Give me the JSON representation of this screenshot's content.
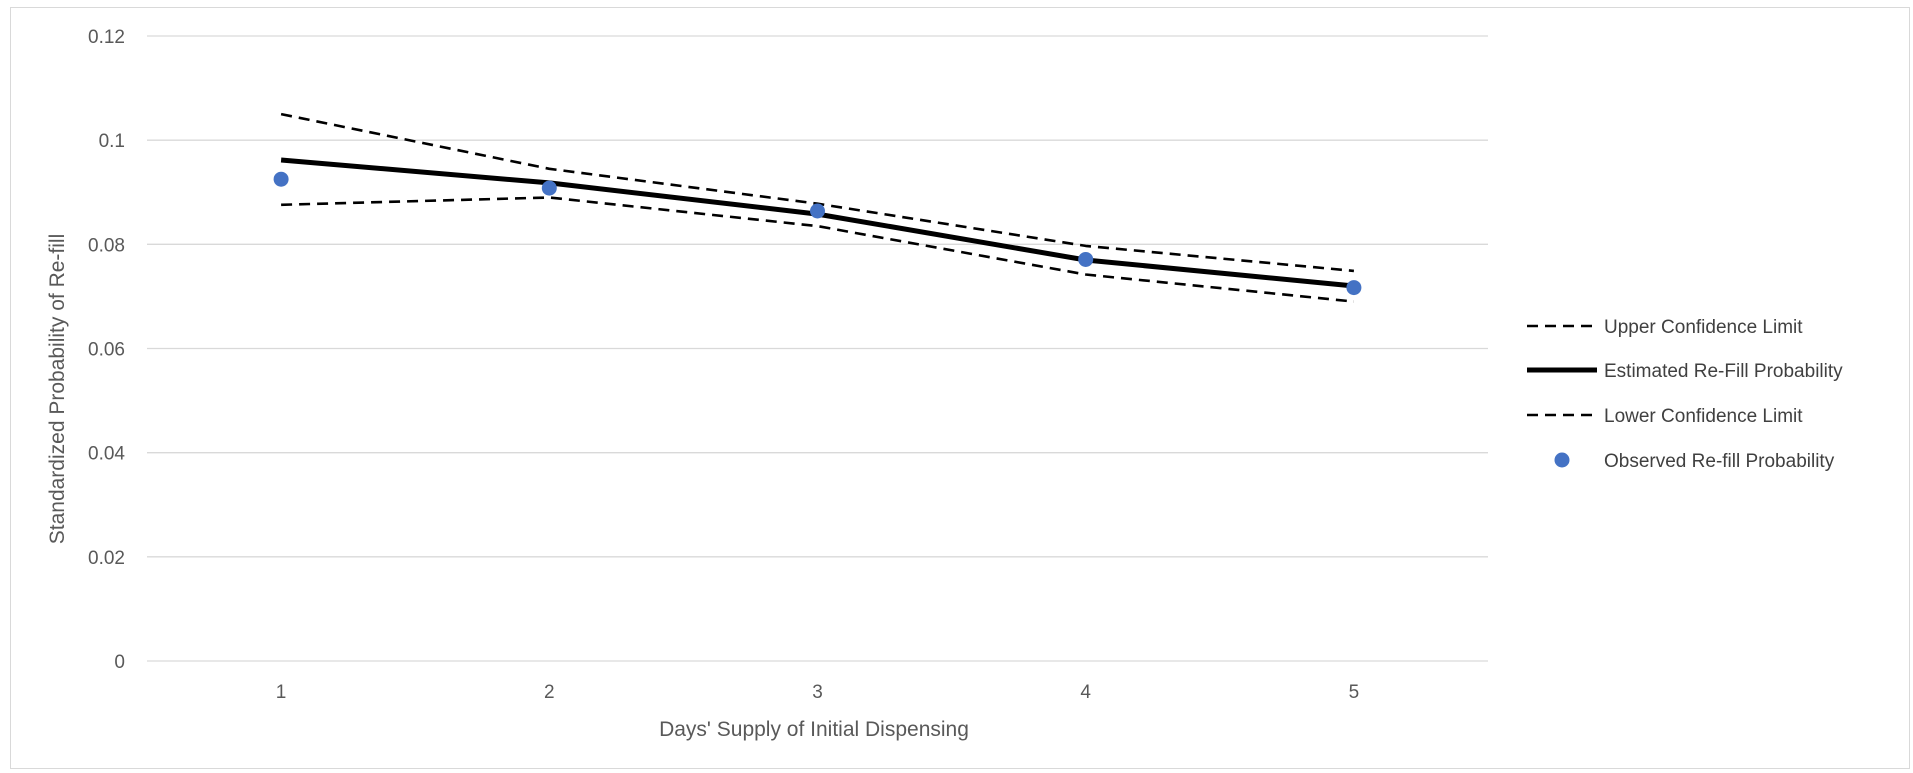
{
  "chart_data": {
    "type": "line",
    "title": "",
    "xlabel": "Days' Supply of Initial Dispensing",
    "ylabel": "Standardized Probability of Re-fill",
    "categories": [
      "1",
      "2",
      "3",
      "4",
      "5"
    ],
    "ylim": [
      0,
      0.12
    ],
    "yticks": [
      "0",
      "0.02",
      "0.04",
      "0.06",
      "0.08",
      "0.1",
      "0.12"
    ],
    "grid": true,
    "legend_position": "right",
    "series": [
      {
        "name": "Upper Confidence Limit",
        "style": "dashed",
        "color": "#000000",
        "values": [
          0.105,
          0.0945,
          0.0878,
          0.0797,
          0.0749
        ]
      },
      {
        "name": "Estimated Re-Fill Probability",
        "style": "solid",
        "color": "#000000",
        "values": [
          0.0962,
          0.0918,
          0.0858,
          0.077,
          0.072
        ]
      },
      {
        "name": "Lower Confidence Limit",
        "style": "dashed",
        "color": "#000000",
        "values": [
          0.0876,
          0.089,
          0.0835,
          0.0742,
          0.069
        ]
      },
      {
        "name": "Observed Re-fill Probability",
        "style": "marker",
        "color": "#4472c4",
        "values": [
          0.0925,
          0.0908,
          0.0864,
          0.0771,
          0.0717
        ]
      }
    ]
  }
}
